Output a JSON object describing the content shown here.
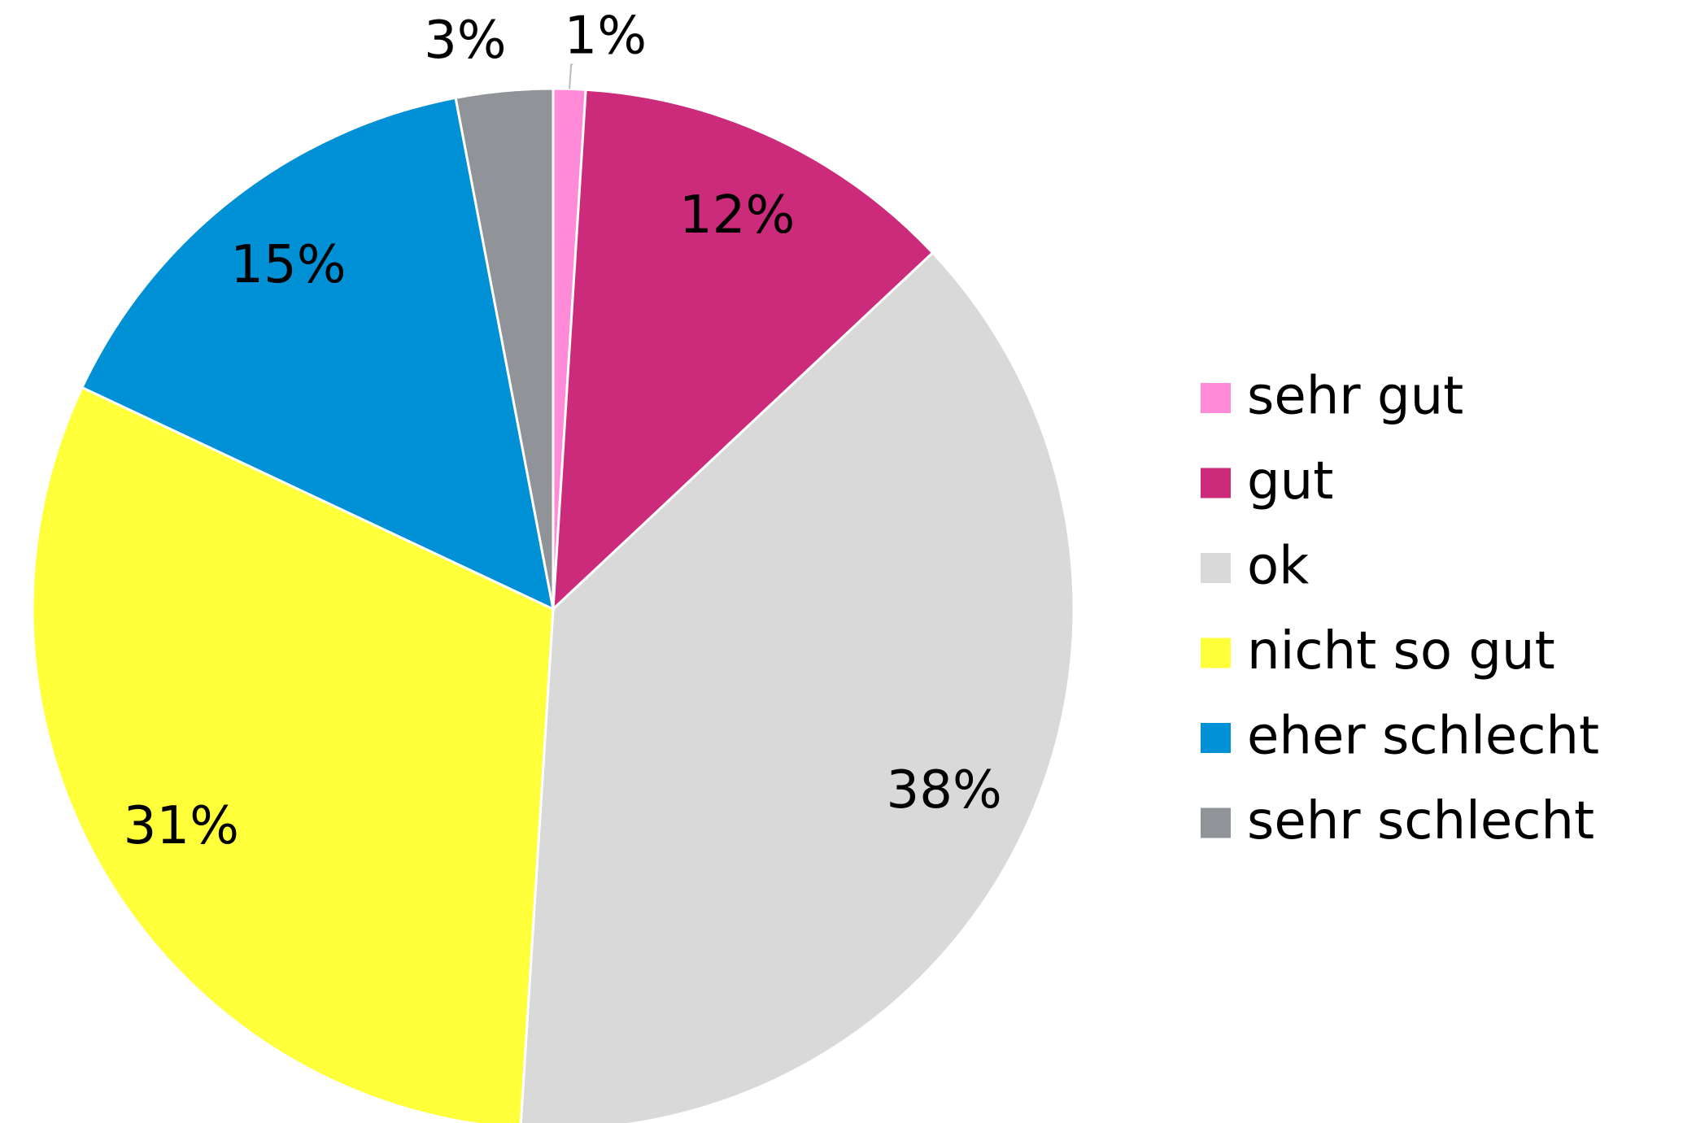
{
  "chart_data": {
    "type": "pie",
    "categories": [
      "sehr gut",
      "gut",
      "ok",
      "nicht so gut",
      "eher schlecht",
      "sehr schlecht"
    ],
    "values": [
      1,
      12,
      38,
      31,
      15,
      3
    ],
    "value_labels": [
      "1%",
      "12%",
      "38%",
      "31%",
      "15%",
      "3%"
    ],
    "colors": [
      "#ff8ad8",
      "#cc2a7a",
      "#d9d9d9",
      "#ffff3a",
      "#0090d5",
      "#909498"
    ],
    "legend": "right"
  }
}
